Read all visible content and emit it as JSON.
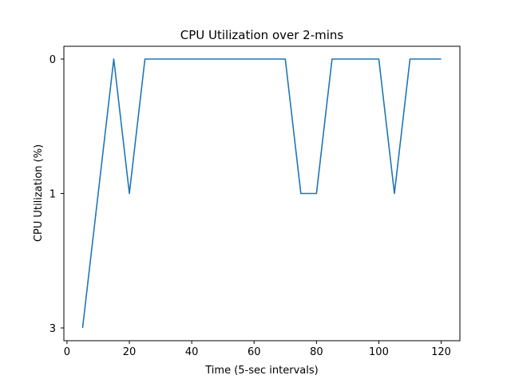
{
  "chart_data": {
    "type": "line",
    "title": "CPU Utilization over 2-mins",
    "xlabel": "Time (5-sec intervals)",
    "ylabel": "CPU Utilization (%)",
    "grid": false,
    "legend": "none",
    "xlim": [
      -1,
      126
    ],
    "x_ticks": [
      0,
      20,
      40,
      60,
      80,
      100,
      120
    ],
    "y_axis_kind": "categorical-inverted",
    "y_categories": [
      "0",
      "1",
      "3"
    ],
    "color": "#1f77b4",
    "series": [
      {
        "x": [
          5,
          15,
          20,
          25,
          30,
          35,
          40,
          45,
          50,
          55,
          60,
          65,
          70,
          75,
          80,
          85,
          90,
          95,
          100,
          105,
          110,
          115,
          120
        ],
        "y": [
          "3",
          "0",
          "1",
          "0",
          "0",
          "0",
          "0",
          "0",
          "0",
          "0",
          "0",
          "0",
          "0",
          "1",
          "1",
          "0",
          "0",
          "0",
          "0",
          "1",
          "0",
          "0",
          "0"
        ]
      }
    ]
  }
}
